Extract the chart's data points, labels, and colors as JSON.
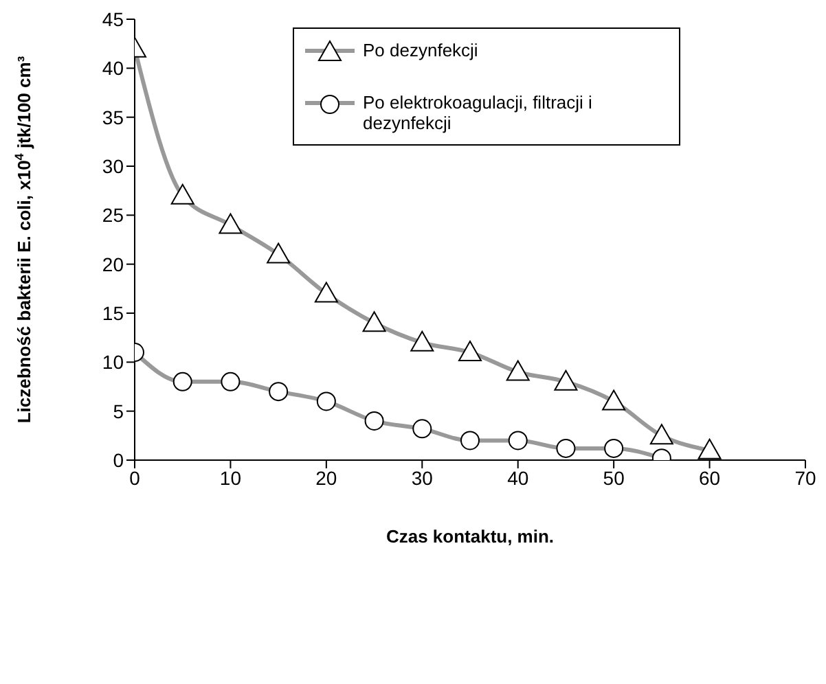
{
  "chart_data": {
    "type": "line",
    "xlabel": "Czas kontaktu, min.",
    "ylabel": "Liczebność bakterii E. coli, x10$^{4}$ jtk/100 cm³",
    "xlim": [
      0,
      70
    ],
    "xticks": [
      0,
      10,
      20,
      30,
      40,
      50,
      60,
      70
    ],
    "ylim": [
      0,
      45
    ],
    "yticks": [
      0,
      5,
      10,
      15,
      20,
      25,
      30,
      35,
      40,
      45
    ],
    "grid": false,
    "legend": "top right",
    "series": [
      {
        "name": "Po dezynfekcji",
        "color": "#999999",
        "marker": "triangle",
        "x": [
          0,
          5,
          10,
          15,
          20,
          25,
          30,
          35,
          40,
          45,
          50,
          55,
          60
        ],
        "values": [
          42,
          27,
          24,
          21,
          17,
          14,
          12,
          11,
          9,
          8,
          6,
          2.5,
          1
        ]
      },
      {
        "name": "Po elektrokoagulacji, filtracji i dezynfekcji",
        "color": "#999999",
        "marker": "circle",
        "x": [
          0,
          5,
          10,
          15,
          20,
          25,
          30,
          35,
          40,
          45,
          50,
          55
        ],
        "values": [
          11,
          8,
          8,
          7,
          6,
          4,
          3.2,
          2,
          2,
          1.2,
          1.2,
          0.2
        ]
      }
    ]
  }
}
